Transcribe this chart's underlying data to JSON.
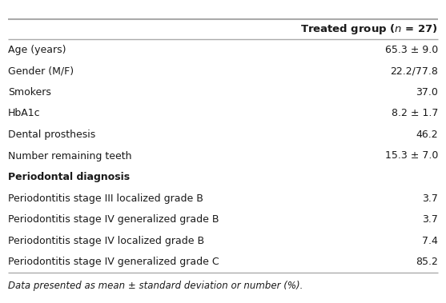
{
  "header": "Treated group (",
  "header_italic": "n",
  "header_end": " = 27)",
  "rows": [
    {
      "label": "Age (years)",
      "value": "65.3 ± 9.0",
      "bold": false
    },
    {
      "label": "Gender (M/F)",
      "value": "22.2/77.8",
      "bold": false
    },
    {
      "label": "Smokers",
      "value": "37.0",
      "bold": false
    },
    {
      "label": "HbA1c",
      "value": "8.2 ± 1.7",
      "bold": false
    },
    {
      "label": "Dental prosthesis",
      "value": "46.2",
      "bold": false
    },
    {
      "label": "Number remaining teeth",
      "value": "15.3 ± 7.0",
      "bold": false
    },
    {
      "label": "Periodontal diagnosis",
      "value": "",
      "bold": true
    },
    {
      "label": "Periodontitis stage III localized grade B",
      "value": "3.7",
      "bold": false
    },
    {
      "label": "Periodontitis stage IV generalized grade B",
      "value": "3.7",
      "bold": false
    },
    {
      "label": "Periodontitis stage IV localized grade B",
      "value": "7.4",
      "bold": false
    },
    {
      "label": "Periodontitis stage IV generalized grade C",
      "value": "85.2",
      "bold": false
    }
  ],
  "footnote": "Data presented as mean ± standard deviation or number (%).",
  "bg_color": "#ffffff",
  "text_color": "#1a1a1a",
  "line_color": "#aaaaaa",
  "font_size": 9.0,
  "header_font_size": 9.5,
  "footnote_font_size": 8.5
}
